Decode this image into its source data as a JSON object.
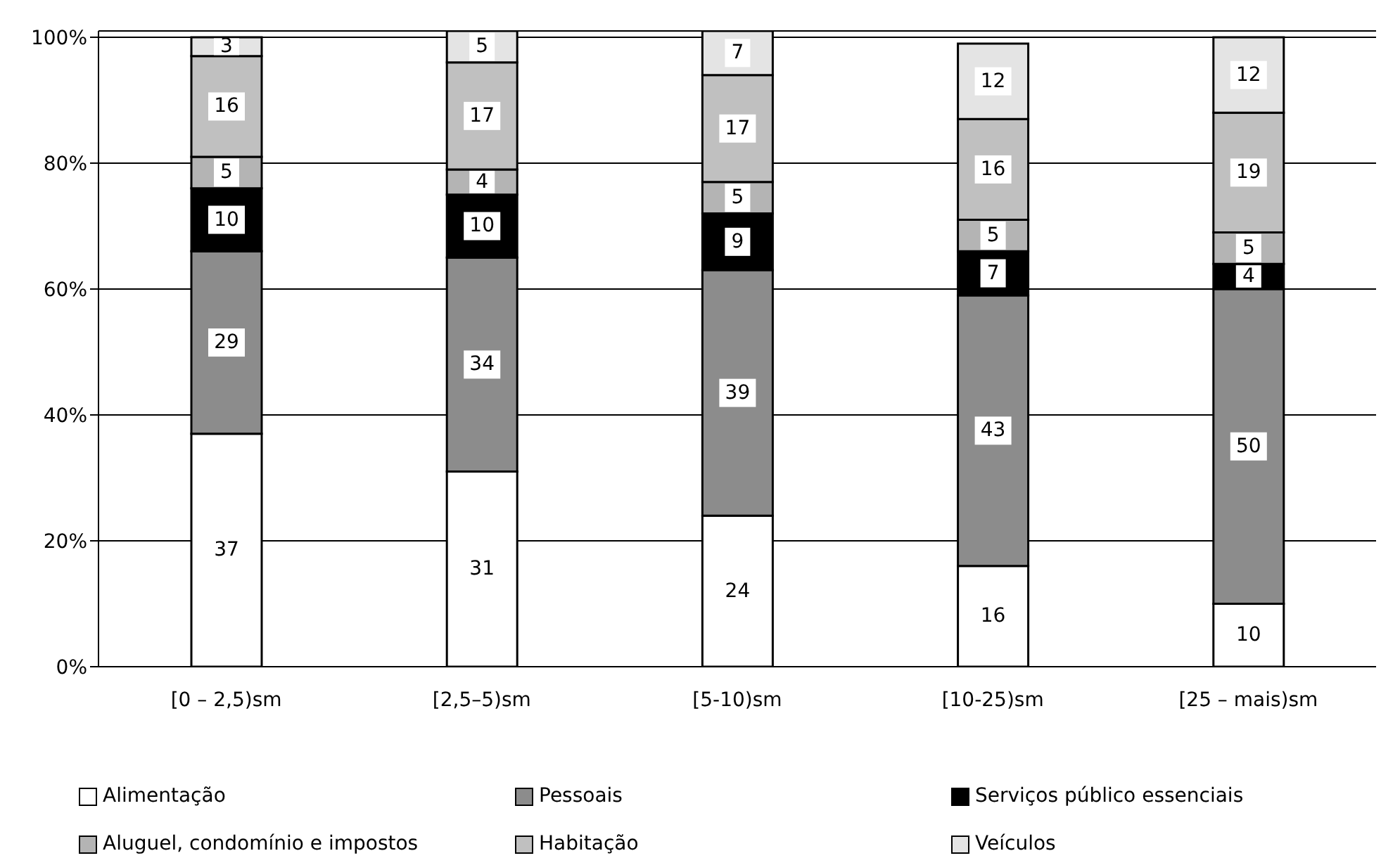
{
  "chart_data": {
    "type": "bar",
    "stacked": true,
    "data_labels": true,
    "grid": "y",
    "legend": "bottom",
    "categories": [
      "[0 – 2,5)sm",
      "[2,5–5)sm",
      "[5-10)sm",
      "[10-25)sm",
      "[25 – mais)sm"
    ],
    "ylim": [
      0,
      101
    ],
    "yticks": [
      {
        "value": 0,
        "label": "0%"
      },
      {
        "value": 20,
        "label": "20%"
      },
      {
        "value": 40,
        "label": "40%"
      },
      {
        "value": 60,
        "label": "60%"
      },
      {
        "value": 80,
        "label": "80%"
      },
      {
        "value": 100,
        "label": "100%"
      }
    ],
    "series": [
      {
        "name": "Alimentação",
        "color": "#ffffff",
        "values": [
          37,
          31,
          24,
          16,
          10
        ]
      },
      {
        "name": "Pessoais",
        "color": "#8c8c8c",
        "values": [
          29,
          34,
          39,
          43,
          50
        ]
      },
      {
        "name": "Serviços público essenciais",
        "color": "#000000",
        "values": [
          10,
          10,
          9,
          7,
          4
        ]
      },
      {
        "name": "Aluguel, condomínio e impostos",
        "color": "#b4b4b4",
        "values": [
          5,
          4,
          5,
          5,
          5
        ]
      },
      {
        "name": "Habitação",
        "color": "#c0c0c0",
        "values": [
          16,
          17,
          17,
          16,
          19
        ]
      },
      {
        "name": "Veículos",
        "color": "#e4e4e4",
        "values": [
          3,
          5,
          7,
          12,
          12
        ]
      }
    ]
  }
}
